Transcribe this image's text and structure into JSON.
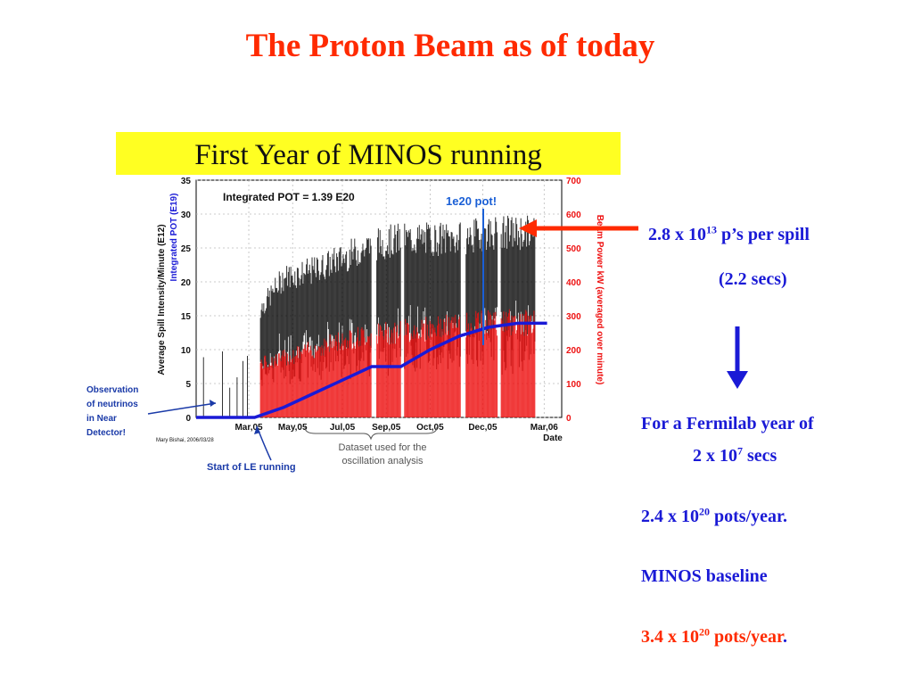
{
  "slide": {
    "title": "The Proton Beam as of today"
  },
  "chart_data": {
    "type": "scatter",
    "title": "First Year of MINOS running",
    "ylabel_left_black": "Average Spill Intensity/Minute (E12)",
    "ylabel_left_blue": "Integrated POT (E19)",
    "ylabel_right": "Beam Power kW (averaged over minute)",
    "xlabel": "Date",
    "x_ticks": [
      "Mar,05",
      "May,05",
      "Jul,05",
      "Sep,05",
      "Oct,05",
      "Dec,05",
      "Mar,06"
    ],
    "y_left_ticks": [
      "0",
      "5",
      "10",
      "15",
      "20",
      "25",
      "30",
      "35"
    ],
    "y_right_ticks": [
      "0",
      "100",
      "200",
      "300",
      "400",
      "500",
      "600",
      "700"
    ],
    "ylim_left": [
      0,
      35
    ],
    "ylim_right": [
      0,
      700
    ],
    "grid": true,
    "integrated_pot_text": "Integrated POT = 1.39 E20",
    "milestone_text": "1e20 pot!",
    "credit": "Mary Bishai, 2006/03/28",
    "dataset_note": [
      "Dataset used for the",
      "oscillation analysis"
    ],
    "observation_note": [
      "Observation",
      "of neutrinos",
      "in Near",
      "Detector!"
    ],
    "le_note": "Start of LE running",
    "series": [
      {
        "name": "Integrated POT (E19)",
        "color": "#1a1ad6",
        "x_months": [
          0,
          2,
          3,
          4,
          5,
          6,
          7,
          8,
          9,
          10,
          11,
          12
        ],
        "y": [
          0,
          0,
          1.5,
          3.5,
          5.5,
          7.5,
          7.5,
          10.0,
          12.0,
          13.3,
          13.9,
          13.9
        ]
      }
    ],
    "intensity_envelope": {
      "color": "#000000",
      "x_months": [
        2.2,
        3,
        4,
        5,
        6,
        7,
        8,
        9,
        10,
        11.6
      ],
      "upper_e12": [
        17,
        22,
        23,
        25,
        27,
        28,
        28,
        28,
        29,
        29
      ]
    },
    "power_envelope": {
      "color": "#ee1111",
      "x_months": [
        2.2,
        3,
        4,
        5,
        6,
        7,
        8,
        9,
        10,
        11.6
      ],
      "upper_kw": [
        180,
        200,
        230,
        260,
        280,
        290,
        300,
        310,
        320,
        320
      ]
    }
  },
  "annotations": {
    "spill_line": {
      "pre": "2.8 x 10",
      "exp": "13",
      "post": " p’s per spill"
    },
    "spill_time": "(2.2 secs)",
    "fermilab_year_line1": "For a Fermilab year of",
    "fermilab_year_line2": {
      "pre": "2 x 10",
      "exp": "7",
      "post": " secs"
    },
    "pots_year": {
      "pre": "2.4 x 10",
      "exp": "20",
      "post": " pots/year."
    },
    "baseline_label": "MINOS baseline",
    "baseline_value": {
      "pre": "3.4 x 10",
      "exp": "20",
      "post": " pots/year",
      "end": "."
    }
  },
  "colors": {
    "title": "#ff2a00",
    "info_blue": "#1a1ad6",
    "info_red": "#ff2a00",
    "chart_banner": "#ffff22",
    "arrow_red": "#ff2a00",
    "arrow_blue": "#1a1ad6"
  }
}
